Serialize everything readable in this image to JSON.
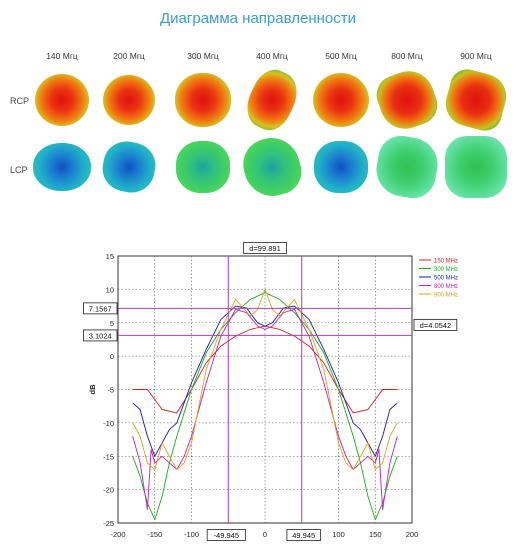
{
  "title": "Диаграмма направленности",
  "patterns": {
    "frequencies": [
      "140 Мгц",
      "200 Мгц",
      "300 Мгц",
      "400 Мгц",
      "500 Мгц",
      "800 Мгц",
      "900 Мгц"
    ],
    "rows": [
      "RCP",
      "LCP"
    ]
  },
  "chart_data": {
    "type": "line",
    "ylabel": "dB",
    "xlim": [
      -200,
      200
    ],
    "ylim": [
      -25,
      15
    ],
    "xticks": [
      -200,
      -150,
      -100,
      -50,
      0,
      50,
      100,
      150,
      200
    ],
    "yticks": [
      -25,
      -20,
      -15,
      -10,
      -5,
      0,
      5,
      10,
      15
    ],
    "grid": true,
    "legend_position": "top-right",
    "series": [
      {
        "name": "150 MHz",
        "color": "#d62020",
        "x": [
          -180,
          -160,
          -150,
          -140,
          -120,
          -100,
          -80,
          -60,
          -40,
          -20,
          0,
          20,
          40,
          60,
          80,
          100,
          120,
          140,
          150,
          160,
          180
        ],
        "y": [
          -5,
          -5,
          -6.5,
          -8,
          -8.5,
          -5,
          -1,
          1.5,
          3,
          4,
          4.5,
          4,
          3,
          1.5,
          -1,
          -5,
          -8.5,
          -8,
          -6.5,
          -5,
          -5
        ]
      },
      {
        "name": "300 MHz",
        "color": "#18b018",
        "x": [
          -180,
          -170,
          -160,
          -150,
          -140,
          -130,
          -120,
          -100,
          -80,
          -60,
          -40,
          -20,
          0,
          20,
          40,
          60,
          80,
          100,
          120,
          130,
          140,
          150,
          160,
          170,
          180
        ],
        "y": [
          -15,
          -18,
          -22,
          -24.5,
          -21,
          -16,
          -12,
          -5,
          0.5,
          4,
          6.5,
          8.5,
          9.5,
          8.5,
          6.5,
          4,
          0.5,
          -5,
          -12,
          -16,
          -21,
          -24.5,
          -22,
          -18,
          -15
        ]
      },
      {
        "name": "500 MHz",
        "color": "#1a1aa0",
        "x": [
          -180,
          -170,
          -160,
          -150,
          -140,
          -130,
          -120,
          -100,
          -80,
          -60,
          -40,
          -25,
          -10,
          0,
          10,
          25,
          40,
          60,
          80,
          100,
          120,
          130,
          140,
          150,
          160,
          170,
          180
        ],
        "y": [
          -7,
          -8,
          -12,
          -15,
          -13,
          -11,
          -10,
          -4,
          1,
          5.5,
          7.5,
          7.2,
          5,
          4.5,
          5,
          7.2,
          7.5,
          5.5,
          1,
          -4,
          -10,
          -11,
          -13,
          -15,
          -12,
          -8,
          -7
        ]
      },
      {
        "name": "800 MHz",
        "color": "#c020c0",
        "x": [
          -180,
          -170,
          -160,
          -155,
          -150,
          -140,
          -130,
          -120,
          -110,
          -100,
          -80,
          -60,
          -40,
          -25,
          -10,
          0,
          10,
          25,
          40,
          60,
          80,
          100,
          110,
          120,
          130,
          140,
          150,
          155,
          160,
          170,
          180
        ],
        "y": [
          -12,
          -16,
          -23,
          -14,
          -16,
          -15,
          -16,
          -17,
          -15,
          -12,
          -4,
          3,
          7,
          6.5,
          4.5,
          4,
          4.5,
          6.5,
          7,
          3,
          -4,
          -12,
          -15,
          -17,
          -16,
          -15,
          -16,
          -14,
          -23,
          -16,
          -12
        ]
      },
      {
        "name": "900 MHz",
        "color": "#e0a020",
        "x": [
          -180,
          -170,
          -160,
          -150,
          -140,
          -130,
          -120,
          -110,
          -100,
          -80,
          -60,
          -40,
          -20,
          -10,
          0,
          10,
          20,
          40,
          60,
          80,
          100,
          110,
          120,
          130,
          140,
          150,
          160,
          170,
          180
        ],
        "y": [
          -10,
          -12,
          -16,
          -17,
          -13,
          -15,
          -17,
          -16,
          -13,
          -2,
          4,
          8.5,
          6,
          7,
          10,
          7,
          6,
          8.5,
          4,
          -2,
          -13,
          -16,
          -17,
          -15,
          -13,
          -17,
          -16,
          -12,
          -10
        ]
      }
    ],
    "markers": {
      "hlines": [
        7.1567,
        3.1024
      ],
      "vlines": [
        -49.945,
        49.945
      ],
      "hline_labels": [
        "7.1567",
        "3.1024"
      ],
      "vline_labels": [
        "-49.945",
        "49.945"
      ],
      "delta_x_label": "d=99.891",
      "delta_y_label": "d=4.0542",
      "marker_color": "#b040b0"
    }
  }
}
